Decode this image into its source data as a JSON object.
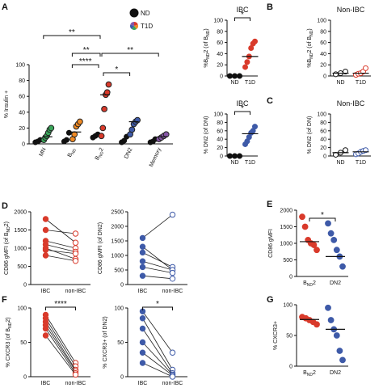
{
  "colors": {
    "bnd2": "#d93a2b",
    "dn2": "#3e5aa8",
    "mn": "#3aa55a",
    "bnd": "#f08a24",
    "memory": "#8656a6",
    "nd": "#111111"
  },
  "panel_letters": [
    "A",
    "B",
    "C",
    "D",
    "E",
    "F",
    "G"
  ],
  "chart_data": [
    {
      "id": "A",
      "type": "scatter",
      "ylabel": "% Insulin +",
      "ylim": [
        0,
        100
      ],
      "yticks": [
        0,
        20,
        40,
        60,
        80,
        100
      ],
      "categories": [
        "MN",
        "BND",
        "BND2",
        "DN2",
        "Memory"
      ],
      "category_labels": [
        {
          "base": "MN"
        },
        {
          "base": "B",
          "sub": "ND"
        },
        {
          "base": "B",
          "sub": "ND",
          "tail": "2"
        },
        {
          "base": "DN2"
        },
        {
          "base": "Memory"
        }
      ],
      "legend": [
        {
          "label": "ND",
          "marker": "nd"
        },
        {
          "label": "T1D",
          "marker": "mixed"
        }
      ],
      "series": [
        {
          "name": "ND",
          "values": [
            [
              2,
              3,
              5
            ],
            [
              3,
              5,
              14
            ],
            [
              8,
              10,
              12
            ],
            [
              2,
              4,
              9
            ],
            [
              2,
              3,
              6
            ]
          ]
        },
        {
          "name": "T1D",
          "values": [
            [
              5,
              8,
              10,
              14,
              18,
              20
            ],
            [
              6,
              12,
              22,
              25,
              28
            ],
            [
              10,
              20,
              44,
              62,
              65,
              75
            ],
            [
              12,
              18,
              25,
              28,
              30
            ],
            [
              6,
              8,
              10,
              12
            ]
          ]
        }
      ],
      "means": [
        9,
        15,
        62,
        28,
        9
      ],
      "significance": [
        {
          "from": "MN",
          "to": "BND2",
          "label": "**"
        },
        {
          "from": "BND",
          "to": "BND2",
          "label": "**"
        },
        {
          "from": "BND2",
          "to": "Memory",
          "label": "**"
        },
        {
          "from": "BND",
          "to": "BND2",
          "label": "****"
        },
        {
          "from": "BND2",
          "to": "DN2",
          "label": "*"
        }
      ]
    },
    {
      "id": "B-IBC",
      "type": "scatter",
      "title": "IBC",
      "ylim": [
        0,
        100
      ],
      "yticks": [
        0,
        20,
        40,
        60,
        80,
        100
      ],
      "ylabel": {
        "base": "%B",
        "sub": "ND",
        "tail": "2 (of B",
        "sub2": "ND",
        "tail2": ")"
      },
      "categories": [
        "ND",
        "T1D"
      ],
      "values": [
        [
          0,
          0,
          0
        ],
        [
          16,
          25,
          35,
          50,
          58,
          62
        ]
      ],
      "means": [
        0,
        35
      ],
      "significance": [
        {
          "from": "ND",
          "to": "T1D",
          "label": "*"
        }
      ]
    },
    {
      "id": "B-NonIBC",
      "type": "scatter",
      "title": "Non-IBC",
      "ylim": [
        0,
        100
      ],
      "yticks": [
        0,
        20,
        40,
        60,
        80,
        100
      ],
      "ylabel": {
        "base": "%B",
        "sub": "ND",
        "tail": "2 (of B",
        "sub2": "ND",
        "tail2": ")"
      },
      "categories": [
        "ND",
        "T1D"
      ],
      "values": [
        [
          3,
          5,
          8
        ],
        [
          2,
          4,
          5,
          8,
          14
        ]
      ],
      "means": [
        5,
        5
      ]
    },
    {
      "id": "C-IBC",
      "type": "scatter",
      "title": "IBC",
      "ylim": [
        0,
        100
      ],
      "yticks": [
        0,
        20,
        40,
        60,
        80,
        100
      ],
      "ylabel": "% DN2 (of DN)",
      "categories": [
        "ND",
        "T1D"
      ],
      "values": [
        [
          0,
          0,
          0
        ],
        [
          28,
          35,
          45,
          55,
          60,
          70
        ]
      ],
      "means": [
        0,
        53
      ],
      "significance": [
        {
          "from": "ND",
          "to": "T1D",
          "label": "*"
        }
      ]
    },
    {
      "id": "C-NonIBC",
      "type": "scatter",
      "title": "Non-IBC",
      "ylim": [
        0,
        100
      ],
      "yticks": [
        0,
        20,
        40,
        60,
        80,
        100
      ],
      "ylabel": "% DN2 (of DN)",
      "categories": [
        "ND",
        "T1D"
      ],
      "values": [
        [
          3,
          8,
          14
        ],
        [
          4,
          6,
          10,
          12,
          14
        ]
      ],
      "means": [
        8,
        10
      ]
    },
    {
      "id": "D-BND2",
      "type": "line",
      "ylim": [
        0,
        2000
      ],
      "yticks": [
        0,
        500,
        1000,
        1500,
        2000
      ],
      "ylabel": {
        "base": "CD86 gMFI (of B",
        "sub": "ND",
        "tail": "2)"
      },
      "categories": [
        "IBC",
        "non-IBC"
      ],
      "pairs": [
        [
          1800,
          1150
        ],
        [
          1500,
          1400
        ],
        [
          1200,
          1000
        ],
        [
          1100,
          900
        ],
        [
          1000,
          700
        ],
        [
          950,
          850
        ],
        [
          800,
          650
        ]
      ]
    },
    {
      "id": "D-DN2",
      "type": "line",
      "ylim": [
        0,
        2500
      ],
      "yticks": [
        0,
        500,
        1000,
        1500,
        2000,
        2500
      ],
      "ylabel": "CD86 gMFI (of DN2)",
      "categories": [
        "IBC",
        "non-IBC"
      ],
      "pairs": [
        [
          1600,
          2400
        ],
        [
          1300,
          500
        ],
        [
          1100,
          600
        ],
        [
          800,
          500
        ],
        [
          600,
          400
        ],
        [
          300,
          200
        ]
      ]
    },
    {
      "id": "E",
      "type": "scatter",
      "ylim": [
        0,
        2000
      ],
      "yticks": [
        0,
        500,
        1000,
        1500,
        2000
      ],
      "ylabel": "CD86 gMFI",
      "categories": [
        {
          "base": "B",
          "sub": "ND",
          "tail": "2"
        },
        {
          "base": "DN2"
        }
      ],
      "values": [
        [
          1800,
          1500,
          1100,
          1000,
          950,
          800
        ],
        [
          1600,
          1300,
          1100,
          800,
          600,
          300
        ]
      ],
      "means": [
        1050,
        600
      ],
      "significance": [
        {
          "from": "BND2",
          "to": "DN2",
          "label": "*"
        }
      ]
    },
    {
      "id": "F-BND2",
      "type": "line",
      "ylim": [
        0,
        100
      ],
      "yticks": [
        0,
        50,
        100
      ],
      "ylabel": {
        "base": "% CXCR3 (of B",
        "sub": "ND",
        "tail": "2)"
      },
      "categories": [
        "IBC",
        "non-IBC"
      ],
      "pairs": [
        [
          90,
          20
        ],
        [
          85,
          15
        ],
        [
          80,
          10
        ],
        [
          75,
          8
        ],
        [
          70,
          5
        ],
        [
          60,
          3
        ]
      ],
      "significance": [
        {
          "from": "IBC",
          "to": "non-IBC",
          "label": "****"
        }
      ]
    },
    {
      "id": "F-DN2",
      "type": "line",
      "ylim": [
        0,
        100
      ],
      "yticks": [
        0,
        50,
        100
      ],
      "ylabel": "% CXCR3+ (of DN2)",
      "categories": [
        "IBC",
        "non-IBC"
      ],
      "pairs": [
        [
          95,
          35
        ],
        [
          85,
          10
        ],
        [
          70,
          5
        ],
        [
          50,
          3
        ],
        [
          35,
          2
        ],
        [
          20,
          0
        ]
      ],
      "significance": [
        {
          "from": "IBC",
          "to": "non-IBC",
          "label": "*"
        }
      ]
    },
    {
      "id": "G",
      "type": "scatter",
      "ylim": [
        0,
        100
      ],
      "yticks": [
        0,
        50,
        100
      ],
      "ylabel": "% CXCR3+",
      "categories": [
        {
          "base": "B",
          "sub": "ND",
          "tail": "2"
        },
        {
          "base": "DN2"
        }
      ],
      "values": [
        [
          80,
          78,
          75,
          72,
          68
        ],
        [
          95,
          75,
          60,
          50,
          25,
          10
        ]
      ],
      "means": [
        76,
        60
      ]
    }
  ]
}
